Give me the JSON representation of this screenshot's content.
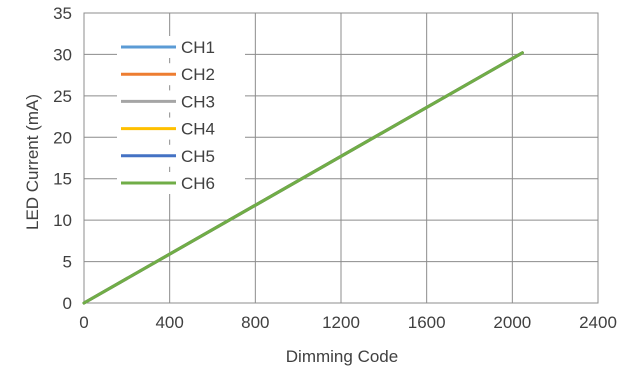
{
  "chart_data": {
    "type": "line",
    "xlabel": "Dimming Code",
    "ylabel": "LED Current (mA)",
    "xlim": [
      0,
      2400
    ],
    "ylim": [
      0,
      35
    ],
    "xticks": [
      0,
      400,
      800,
      1200,
      1600,
      2000,
      2400
    ],
    "yticks": [
      0,
      5,
      10,
      15,
      20,
      25,
      30,
      35
    ],
    "grid": true,
    "legend_position": "top-left",
    "series": [
      {
        "name": "CH1",
        "color": "#5B9BD5",
        "x": [
          0,
          2047
        ],
        "y": [
          0,
          30.2
        ]
      },
      {
        "name": "CH2",
        "color": "#ED7D31",
        "x": [
          0,
          2047
        ],
        "y": [
          0,
          30.2
        ]
      },
      {
        "name": "CH3",
        "color": "#A5A5A5",
        "x": [
          0,
          2047
        ],
        "y": [
          0,
          30.2
        ]
      },
      {
        "name": "CH4",
        "color": "#FFC000",
        "x": [
          0,
          2047
        ],
        "y": [
          0,
          30.2
        ]
      },
      {
        "name": "CH5",
        "color": "#4472C4",
        "x": [
          0,
          2047
        ],
        "y": [
          0,
          30.2
        ]
      },
      {
        "name": "CH6",
        "color": "#70AD47",
        "x": [
          0,
          2047
        ],
        "y": [
          0,
          30.2
        ]
      }
    ]
  }
}
